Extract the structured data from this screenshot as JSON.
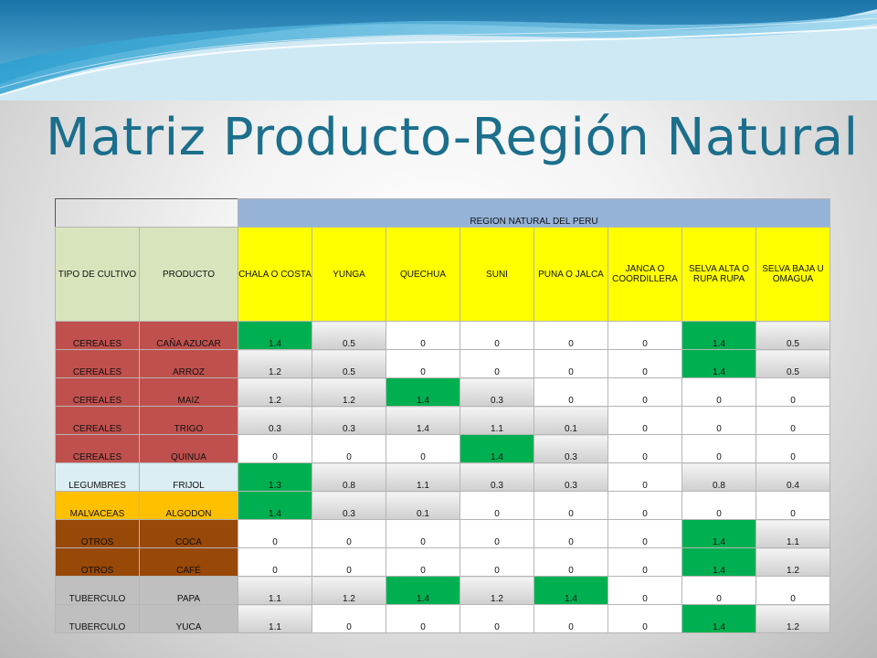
{
  "slide": {
    "title": "Matriz Producto-Región Natural"
  },
  "table": {
    "region_header": "REGION NATURAL DEL PERU",
    "col_tipo": "TIPO DE CULTIVO",
    "col_producto": "PRODUCTO",
    "regions": [
      "CHALA O COSTA",
      "YUNGA",
      "QUECHUA",
      "SUNI",
      "PUNA O JALCA",
      "JANCA O COORDILLERA",
      "SELVA ALTA O RUPA RUPA",
      "SELVA BAJA U OMAGUA"
    ],
    "colors": {
      "CEREALES": "#c0504d",
      "LEGUMBRES": "#daeef3",
      "MALVACEAS": "#ffc000",
      "OTROS": "#984807",
      "TUBERCULO": "#bfbfbf",
      "highlight": "#00b050",
      "region_header": "#95b3d7",
      "column_header": "#d8e4bc",
      "region_columns": "#ffff00"
    },
    "rows": [
      {
        "tipo": "CEREALES",
        "producto": "CAÑA AZUCAR",
        "values": [
          "1.4",
          "0.5",
          "0",
          "0",
          "0",
          "0",
          "1.4",
          "0.5"
        ],
        "fills": [
          "green",
          "gray",
          "white",
          "white",
          "white",
          "white",
          "green",
          "gray"
        ]
      },
      {
        "tipo": "CEREALES",
        "producto": "ARROZ",
        "values": [
          "1.2",
          "0.5",
          "0",
          "0",
          "0",
          "0",
          "1.4",
          "0.5"
        ],
        "fills": [
          "gray",
          "gray",
          "white",
          "white",
          "white",
          "white",
          "green",
          "gray"
        ]
      },
      {
        "tipo": "CEREALES",
        "producto": "MAIZ",
        "values": [
          "1.2",
          "1.2",
          "1.4",
          "0.3",
          "0",
          "0",
          "0",
          "0"
        ],
        "fills": [
          "gray",
          "gray",
          "green",
          "gray",
          "white",
          "white",
          "white",
          "white"
        ]
      },
      {
        "tipo": "CEREALES",
        "producto": "TRIGO",
        "values": [
          "0.3",
          "0.3",
          "1.4",
          "1.1",
          "0.1",
          "0",
          "0",
          "0"
        ],
        "fills": [
          "gray",
          "gray",
          "gray",
          "gray",
          "gray",
          "white",
          "white",
          "white"
        ]
      },
      {
        "tipo": "CEREALES",
        "producto": "QUINUA",
        "values": [
          "0",
          "0",
          "0",
          "1.4",
          "0.3",
          "0",
          "0",
          "0"
        ],
        "fills": [
          "white",
          "white",
          "white",
          "green",
          "gray",
          "white",
          "white",
          "white"
        ]
      },
      {
        "tipo": "LEGUMBRES",
        "producto": "FRIJOL",
        "values": [
          "1.3",
          "0.8",
          "1.1",
          "0.3",
          "0.3",
          "0",
          "0.8",
          "0.4"
        ],
        "fills": [
          "green",
          "gray",
          "gray",
          "gray",
          "gray",
          "white",
          "gray",
          "gray"
        ]
      },
      {
        "tipo": "MALVACEAS",
        "producto": "ALGODON",
        "values": [
          "1.4",
          "0.3",
          "0.1",
          "0",
          "0",
          "0",
          "0",
          "0"
        ],
        "fills": [
          "green",
          "gray",
          "gray",
          "white",
          "white",
          "white",
          "white",
          "white"
        ]
      },
      {
        "tipo": "OTROS",
        "producto": "COCA",
        "values": [
          "0",
          "0",
          "0",
          "0",
          "0",
          "0",
          "1.4",
          "1.1"
        ],
        "fills": [
          "white",
          "white",
          "white",
          "white",
          "white",
          "white",
          "green",
          "gray"
        ]
      },
      {
        "tipo": "OTROS",
        "producto": "CAFÉ",
        "values": [
          "0",
          "0",
          "0",
          "0",
          "0",
          "0",
          "1.4",
          "1.2"
        ],
        "fills": [
          "white",
          "white",
          "white",
          "white",
          "white",
          "white",
          "green",
          "gray"
        ]
      },
      {
        "tipo": "TUBERCULO",
        "producto": "PAPA",
        "values": [
          "1.1",
          "1.2",
          "1.4",
          "1.2",
          "1.4",
          "0",
          "0",
          "0"
        ],
        "fills": [
          "gray",
          "gray",
          "green",
          "gray",
          "green",
          "white",
          "white",
          "white"
        ]
      },
      {
        "tipo": "TUBERCULO",
        "producto": "YUCA",
        "values": [
          "1.1",
          "0",
          "0",
          "0",
          "0",
          "0",
          "1.4",
          "1.2"
        ],
        "fills": [
          "gray",
          "white",
          "white",
          "white",
          "white",
          "white",
          "green",
          "gray"
        ]
      }
    ]
  }
}
